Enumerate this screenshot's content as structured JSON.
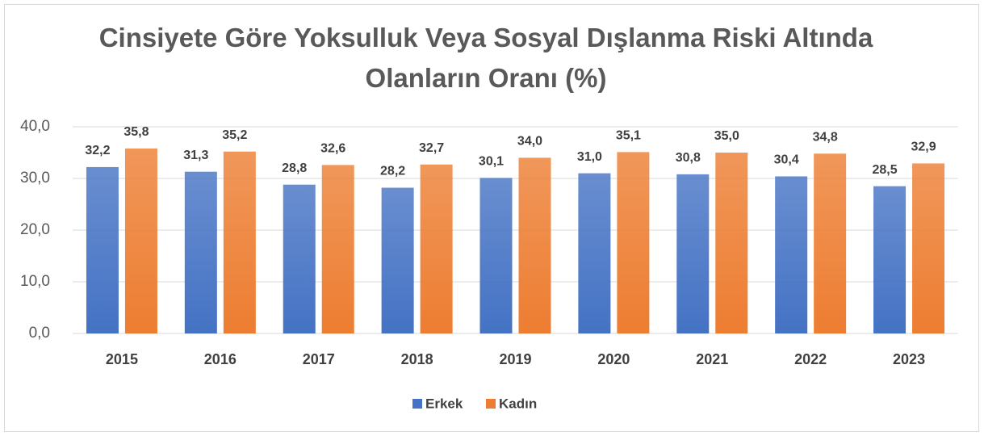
{
  "chart_data": {
    "type": "bar",
    "title": "Cinsiyete Göre Yoksulluk Veya Sosyal Dışlanma Riski Altında Olanların Oranı (%)",
    "categories": [
      "2015",
      "2016",
      "2017",
      "2018",
      "2019",
      "2020",
      "2021",
      "2022",
      "2023"
    ],
    "series": [
      {
        "name": "Erkek",
        "color": "#4472c4",
        "values": [
          32.2,
          31.3,
          28.8,
          28.2,
          30.1,
          31.0,
          30.8,
          30.4,
          28.5
        ],
        "value_labels": [
          "32,2",
          "31,3",
          "28,8",
          "28,2",
          "30,1",
          "31,0",
          "30,8",
          "30,4",
          "28,5"
        ]
      },
      {
        "name": "Kadın",
        "color": "#ed7d31",
        "values": [
          35.8,
          35.2,
          32.6,
          32.7,
          34.0,
          35.1,
          35.0,
          34.8,
          32.9
        ],
        "value_labels": [
          "35,8",
          "35,2",
          "32,6",
          "32,7",
          "34,0",
          "35,1",
          "35,0",
          "34,8",
          "32,9"
        ]
      }
    ],
    "ylim": [
      0,
      40
    ],
    "yticks": [
      {
        "value": 0,
        "label": "0,0"
      },
      {
        "value": 10,
        "label": "10,0"
      },
      {
        "value": 20,
        "label": "20,0"
      },
      {
        "value": 30,
        "label": "30,0"
      },
      {
        "value": 40,
        "label": "40,0"
      }
    ],
    "grid": true,
    "legend": "bottom"
  }
}
